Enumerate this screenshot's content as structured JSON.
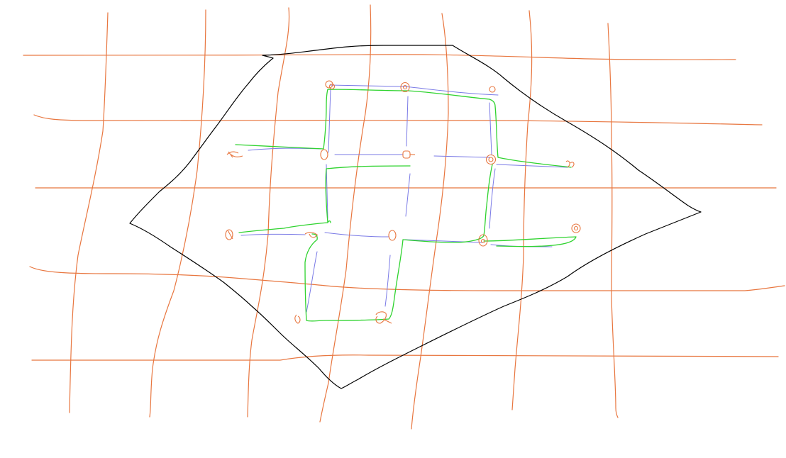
{
  "canvas": {
    "background": "#ffffff"
  },
  "colors": {
    "grid": "#e8763f",
    "outline": "#000000",
    "route": "#2fd32f",
    "link": "#7a7ae6",
    "node": "#e8763f"
  },
  "layers": [
    "orange-grid",
    "black-outline",
    "green-route",
    "blue-links",
    "orange-nodes"
  ]
}
